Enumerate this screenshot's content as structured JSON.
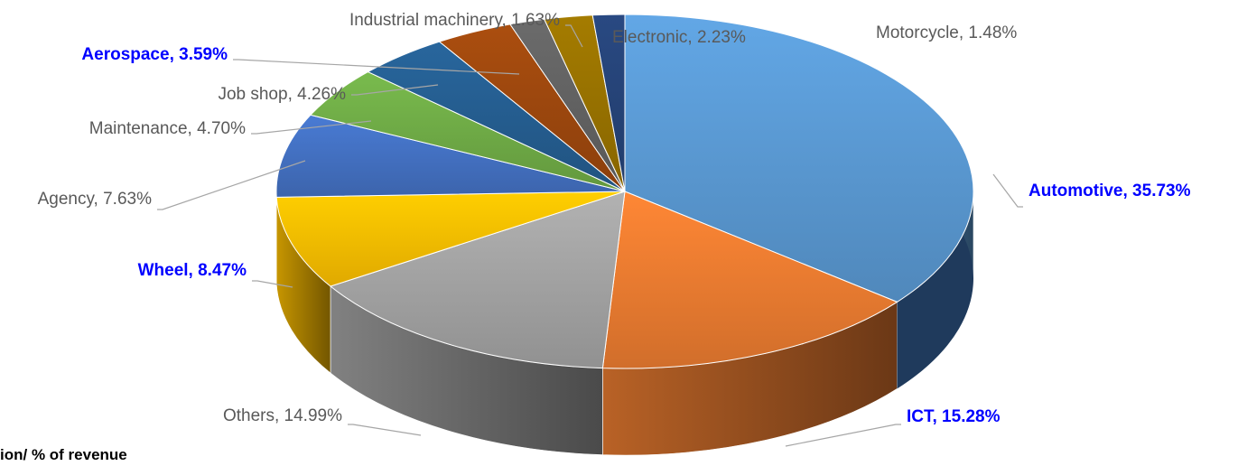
{
  "chart_data": {
    "type": "pie",
    "style": "3d-exploded-perspective",
    "start_at": "12 o'clock, clockwise",
    "categories": [
      "Automotive",
      "ICT",
      "Others",
      "Wheel",
      "Agency",
      "Maintenance",
      "Job shop",
      "Aerospace",
      "Industrial machinery",
      "Electronic",
      "Motorcycle"
    ],
    "values": [
      35.73,
      15.28,
      14.99,
      8.47,
      7.63,
      4.7,
      4.26,
      3.59,
      1.63,
      2.23,
      1.48
    ],
    "labels": [
      "Automotive, 35.73%",
      "ICT, 15.28%",
      "Others, 14.99%",
      "Wheel, 8.47%",
      "Agency, 7.63%",
      "Maintenance, 4.70%",
      "Job shop, 4.26%",
      "Aerospace, 3.59%",
      "Industrial machinery, 1.63%",
      "Electronic, 2.23%",
      "Motorcycle, 1.48%"
    ],
    "highlighted": [
      "Automotive",
      "ICT",
      "Wheel",
      "Aerospace"
    ],
    "colors": [
      "#5b9bd5",
      "#ed7d31",
      "#a5a5a5",
      "#ffc000",
      "#4472c4",
      "#70ad47",
      "#255e91",
      "#9e480e",
      "#636363",
      "#997300",
      "#264478"
    ],
    "highlight_color": "#0000ff",
    "label_color": "#595959",
    "legend": "none"
  },
  "footer_text": "ion/ % of revenue"
}
